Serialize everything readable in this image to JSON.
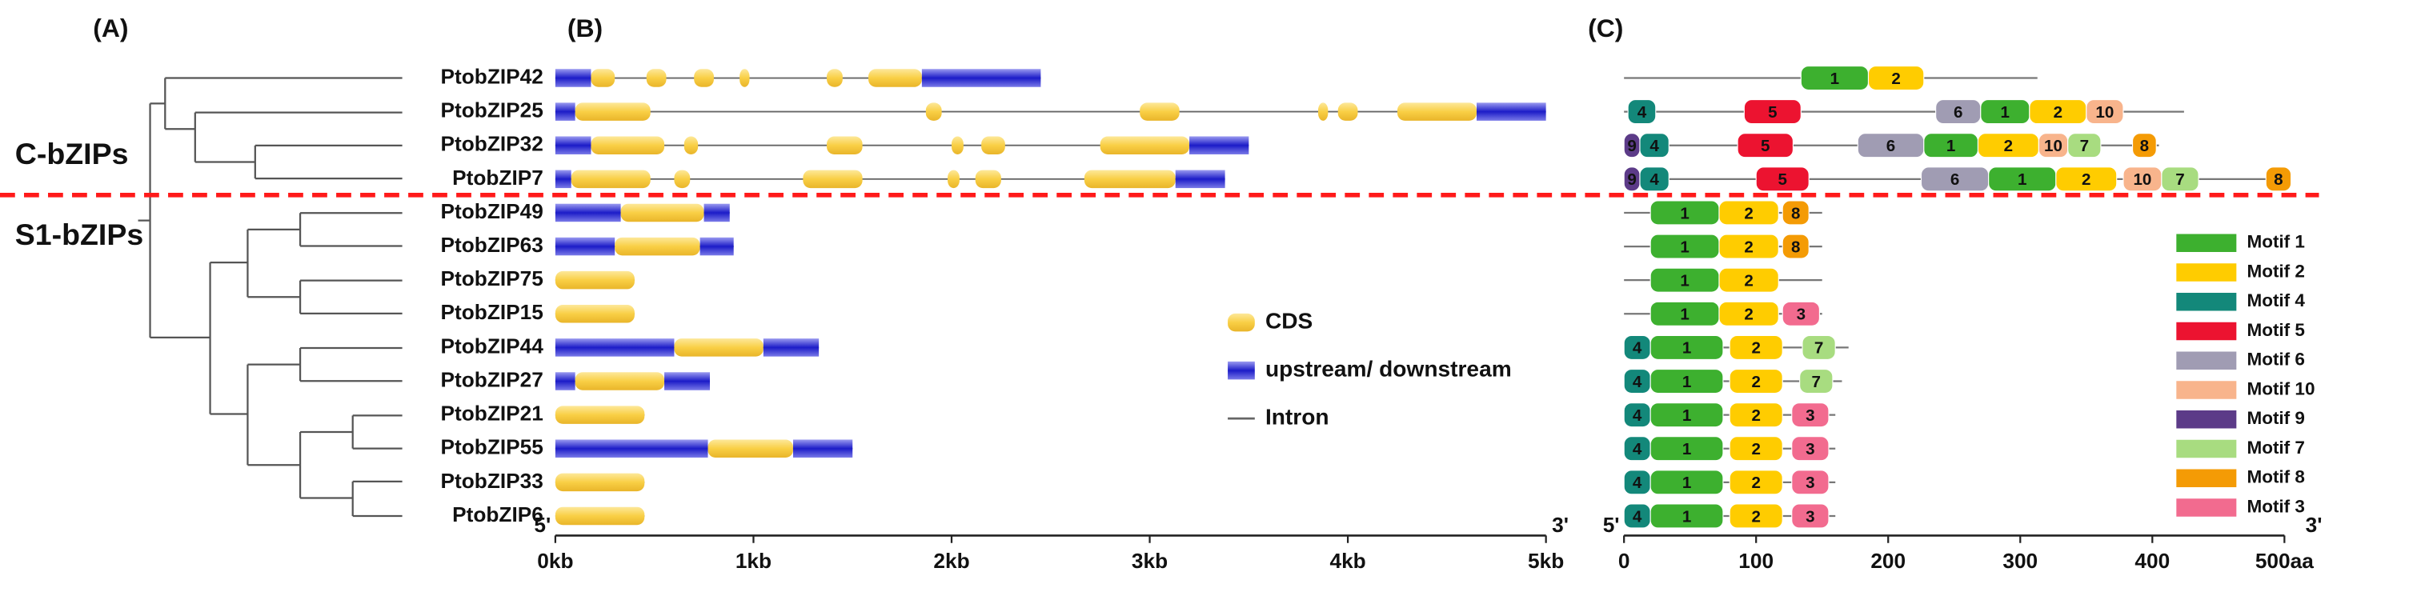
{
  "panel_labels": [
    "(A)",
    "(B)",
    "(C)"
  ],
  "clades": [
    "C-bZIPs",
    "S1-bZIPs"
  ],
  "genes": [
    {
      "name": "PtobZIP42",
      "length_kb": 2.45,
      "segments": [
        {
          "type": "utr",
          "start": 0,
          "end": 0.18
        },
        {
          "type": "cds",
          "start": 0.18,
          "end": 0.3
        },
        {
          "type": "cds",
          "start": 0.46,
          "end": 0.56
        },
        {
          "type": "cds",
          "start": 0.7,
          "end": 0.8
        },
        {
          "type": "cds",
          "start": 0.93,
          "end": 0.98
        },
        {
          "type": "cds",
          "start": 1.37,
          "end": 1.45
        },
        {
          "type": "cds",
          "start": 1.58,
          "end": 1.85
        },
        {
          "type": "utr",
          "start": 1.85,
          "end": 2.45
        }
      ],
      "length_aa": 313,
      "motifs": [
        {
          "motif": "1",
          "start": 134,
          "end": 185
        },
        {
          "motif": "2",
          "start": 185,
          "end": 227
        }
      ]
    },
    {
      "name": "PtobZIP25",
      "length_kb": 5.0,
      "segments": [
        {
          "type": "utr",
          "start": 0,
          "end": 0.1
        },
        {
          "type": "cds",
          "start": 0.1,
          "end": 0.48
        },
        {
          "type": "cds",
          "start": 1.87,
          "end": 1.95
        },
        {
          "type": "cds",
          "start": 2.95,
          "end": 3.15
        },
        {
          "type": "cds",
          "start": 3.85,
          "end": 3.9
        },
        {
          "type": "cds",
          "start": 3.95,
          "end": 4.05
        },
        {
          "type": "cds",
          "start": 4.25,
          "end": 4.65
        },
        {
          "type": "utr",
          "start": 4.65,
          "end": 5.0
        }
      ],
      "length_aa": 424,
      "motifs": [
        {
          "motif": "4",
          "start": 3,
          "end": 24
        },
        {
          "motif": "5",
          "start": 91,
          "end": 134
        },
        {
          "motif": "6",
          "start": 236,
          "end": 270
        },
        {
          "motif": "1",
          "start": 270,
          "end": 307
        },
        {
          "motif": "2",
          "start": 307,
          "end": 350
        },
        {
          "motif": "10",
          "start": 350,
          "end": 378
        }
      ]
    },
    {
      "name": "PtobZIP32",
      "length_kb": 3.5,
      "segments": [
        {
          "type": "utr",
          "start": 0,
          "end": 0.18
        },
        {
          "type": "cds",
          "start": 0.18,
          "end": 0.55
        },
        {
          "type": "cds",
          "start": 0.65,
          "end": 0.72
        },
        {
          "type": "cds",
          "start": 1.37,
          "end": 1.55
        },
        {
          "type": "cds",
          "start": 2.0,
          "end": 2.06
        },
        {
          "type": "cds",
          "start": 2.15,
          "end": 2.27
        },
        {
          "type": "cds",
          "start": 2.75,
          "end": 3.2
        },
        {
          "type": "utr",
          "start": 3.2,
          "end": 3.5
        }
      ],
      "length_aa": 405,
      "motifs": [
        {
          "motif": "9",
          "start": 0,
          "end": 12
        },
        {
          "motif": "4",
          "start": 12,
          "end": 34
        },
        {
          "motif": "5",
          "start": 86,
          "end": 128
        },
        {
          "motif": "6",
          "start": 177,
          "end": 227
        },
        {
          "motif": "1",
          "start": 227,
          "end": 268
        },
        {
          "motif": "2",
          "start": 268,
          "end": 314
        },
        {
          "motif": "10",
          "start": 314,
          "end": 336
        },
        {
          "motif": "7",
          "start": 336,
          "end": 361
        },
        {
          "motif": "8",
          "start": 385,
          "end": 403
        }
      ]
    },
    {
      "name": "PtobZIP7",
      "length_kb": 3.38,
      "segments": [
        {
          "type": "utr",
          "start": 0,
          "end": 0.08
        },
        {
          "type": "cds",
          "start": 0.08,
          "end": 0.48
        },
        {
          "type": "cds",
          "start": 0.6,
          "end": 0.68
        },
        {
          "type": "cds",
          "start": 1.25,
          "end": 1.55
        },
        {
          "type": "cds",
          "start": 1.98,
          "end": 2.04
        },
        {
          "type": "cds",
          "start": 2.12,
          "end": 2.25
        },
        {
          "type": "cds",
          "start": 2.67,
          "end": 3.13
        },
        {
          "type": "utr",
          "start": 3.13,
          "end": 3.38
        }
      ],
      "length_aa": 505,
      "motifs": [
        {
          "motif": "9",
          "start": 0,
          "end": 12
        },
        {
          "motif": "4",
          "start": 12,
          "end": 34
        },
        {
          "motif": "5",
          "start": 100,
          "end": 140
        },
        {
          "motif": "6",
          "start": 225,
          "end": 276
        },
        {
          "motif": "1",
          "start": 276,
          "end": 327
        },
        {
          "motif": "2",
          "start": 327,
          "end": 373
        },
        {
          "motif": "10",
          "start": 378,
          "end": 407
        },
        {
          "motif": "7",
          "start": 407,
          "end": 435
        },
        {
          "motif": "8",
          "start": 486,
          "end": 505
        }
      ]
    },
    {
      "name": "PtobZIP49",
      "length_kb": 0.88,
      "segments": [
        {
          "type": "utr",
          "start": 0,
          "end": 0.33
        },
        {
          "type": "cds",
          "start": 0.33,
          "end": 0.75
        },
        {
          "type": "utr",
          "start": 0.75,
          "end": 0.88
        }
      ],
      "length_aa": 150,
      "motifs": [
        {
          "motif": "1",
          "start": 20,
          "end": 72
        },
        {
          "motif": "2",
          "start": 72,
          "end": 117
        },
        {
          "motif": "8",
          "start": 120,
          "end": 140
        }
      ]
    },
    {
      "name": "PtobZIP63",
      "length_kb": 0.9,
      "segments": [
        {
          "type": "utr",
          "start": 0,
          "end": 0.3
        },
        {
          "type": "cds",
          "start": 0.3,
          "end": 0.73
        },
        {
          "type": "utr",
          "start": 0.73,
          "end": 0.9
        }
      ],
      "length_aa": 150,
      "motifs": [
        {
          "motif": "1",
          "start": 20,
          "end": 72
        },
        {
          "motif": "2",
          "start": 72,
          "end": 117
        },
        {
          "motif": "8",
          "start": 120,
          "end": 140
        }
      ]
    },
    {
      "name": "PtobZIP75",
      "length_kb": 0.4,
      "segments": [
        {
          "type": "cds",
          "start": 0,
          "end": 0.4
        }
      ],
      "length_aa": 150,
      "motifs": [
        {
          "motif": "1",
          "start": 20,
          "end": 72
        },
        {
          "motif": "2",
          "start": 72,
          "end": 117
        }
      ]
    },
    {
      "name": "PtobZIP15",
      "length_kb": 0.4,
      "segments": [
        {
          "type": "cds",
          "start": 0,
          "end": 0.4
        }
      ],
      "length_aa": 150,
      "motifs": [
        {
          "motif": "1",
          "start": 20,
          "end": 72
        },
        {
          "motif": "2",
          "start": 72,
          "end": 117
        },
        {
          "motif": "3",
          "start": 120,
          "end": 148
        }
      ]
    },
    {
      "name": "PtobZIP44",
      "length_kb": 1.33,
      "segments": [
        {
          "type": "utr",
          "start": 0,
          "end": 0.6
        },
        {
          "type": "cds",
          "start": 0.6,
          "end": 1.05
        },
        {
          "type": "utr",
          "start": 1.05,
          "end": 1.33
        }
      ],
      "length_aa": 170,
      "motifs": [
        {
          "motif": "4",
          "start": 0,
          "end": 20
        },
        {
          "motif": "1",
          "start": 20,
          "end": 75
        },
        {
          "motif": "2",
          "start": 80,
          "end": 120
        },
        {
          "motif": "7",
          "start": 135,
          "end": 160
        }
      ]
    },
    {
      "name": "PtobZIP27",
      "length_kb": 0.78,
      "segments": [
        {
          "type": "utr",
          "start": 0,
          "end": 0.1
        },
        {
          "type": "cds",
          "start": 0.1,
          "end": 0.55
        },
        {
          "type": "utr",
          "start": 0.55,
          "end": 0.78
        }
      ],
      "length_aa": 165,
      "motifs": [
        {
          "motif": "4",
          "start": 0,
          "end": 20
        },
        {
          "motif": "1",
          "start": 20,
          "end": 75
        },
        {
          "motif": "2",
          "start": 80,
          "end": 120
        },
        {
          "motif": "7",
          "start": 133,
          "end": 158
        }
      ]
    },
    {
      "name": "PtobZIP21",
      "length_kb": 0.45,
      "segments": [
        {
          "type": "cds",
          "start": 0,
          "end": 0.45
        }
      ],
      "length_aa": 160,
      "motifs": [
        {
          "motif": "4",
          "start": 0,
          "end": 20
        },
        {
          "motif": "1",
          "start": 20,
          "end": 75
        },
        {
          "motif": "2",
          "start": 80,
          "end": 120
        },
        {
          "motif": "3",
          "start": 127,
          "end": 155
        }
      ]
    },
    {
      "name": "PtobZIP55",
      "length_kb": 1.5,
      "segments": [
        {
          "type": "utr",
          "start": 0,
          "end": 0.77
        },
        {
          "type": "cds",
          "start": 0.77,
          "end": 1.2
        },
        {
          "type": "utr",
          "start": 1.2,
          "end": 1.5
        }
      ],
      "length_aa": 160,
      "motifs": [
        {
          "motif": "4",
          "start": 0,
          "end": 20
        },
        {
          "motif": "1",
          "start": 20,
          "end": 75
        },
        {
          "motif": "2",
          "start": 80,
          "end": 120
        },
        {
          "motif": "3",
          "start": 127,
          "end": 155
        }
      ]
    },
    {
      "name": "PtobZIP33",
      "length_kb": 0.45,
      "segments": [
        {
          "type": "cds",
          "start": 0,
          "end": 0.45
        }
      ],
      "length_aa": 160,
      "motifs": [
        {
          "motif": "4",
          "start": 0,
          "end": 20
        },
        {
          "motif": "1",
          "start": 20,
          "end": 75
        },
        {
          "motif": "2",
          "start": 80,
          "end": 120
        },
        {
          "motif": "3",
          "start": 127,
          "end": 155
        }
      ]
    },
    {
      "name": "PtobZIP6",
      "length_kb": 0.45,
      "segments": [
        {
          "type": "cds",
          "start": 0,
          "end": 0.45
        }
      ],
      "length_aa": 160,
      "motifs": [
        {
          "motif": "4",
          "start": 0,
          "end": 20
        },
        {
          "motif": "1",
          "start": 20,
          "end": 75
        },
        {
          "motif": "2",
          "start": 80,
          "end": 120
        },
        {
          "motif": "3",
          "start": 127,
          "end": 155
        }
      ]
    }
  ],
  "structure": {
    "legend": [
      {
        "type": "cds",
        "label": "CDS",
        "color": "#f9cf45"
      },
      {
        "type": "utr",
        "label": "upstream/ downstream",
        "color": "#2a2ad6"
      },
      {
        "type": "intron",
        "label": "Intron",
        "color": "#666666"
      }
    ],
    "xlim": [
      0,
      5
    ],
    "xticks": [
      {
        "value": 0,
        "label": "0kb"
      },
      {
        "value": 1,
        "label": "1kb"
      },
      {
        "value": 2,
        "label": "2kb"
      },
      {
        "value": 3,
        "label": "3kb"
      },
      {
        "value": 4,
        "label": "4kb"
      },
      {
        "value": 5,
        "label": "5kb"
      }
    ],
    "end_labels": [
      "5'",
      "3'"
    ]
  },
  "motif_panel": {
    "xlim": [
      0,
      500
    ],
    "xticks": [
      0,
      100,
      200,
      300,
      400,
      {
        "value": 500,
        "label": "500aa"
      }
    ],
    "end_labels": [
      "5'",
      "3'"
    ],
    "motifs": [
      {
        "id": "1",
        "label": "Motif 1",
        "color": "#3db02f"
      },
      {
        "id": "2",
        "label": "Motif 2",
        "color": "#ffcc00"
      },
      {
        "id": "4",
        "label": "Motif 4",
        "color": "#13887a"
      },
      {
        "id": "5",
        "label": "Motif 5",
        "color": "#ec1330"
      },
      {
        "id": "6",
        "label": "Motif 6",
        "color": "#a09cb3"
      },
      {
        "id": "10",
        "label": "Motif 10",
        "color": "#f8b48c"
      },
      {
        "id": "9",
        "label": "Motif 9",
        "color": "#5c3b88"
      },
      {
        "id": "7",
        "label": "Motif 7",
        "color": "#a8dc80"
      },
      {
        "id": "8",
        "label": "Motif 8",
        "color": "#f49b05"
      },
      {
        "id": "3",
        "label": "Motif 3",
        "color": "#f26b8f"
      }
    ]
  }
}
